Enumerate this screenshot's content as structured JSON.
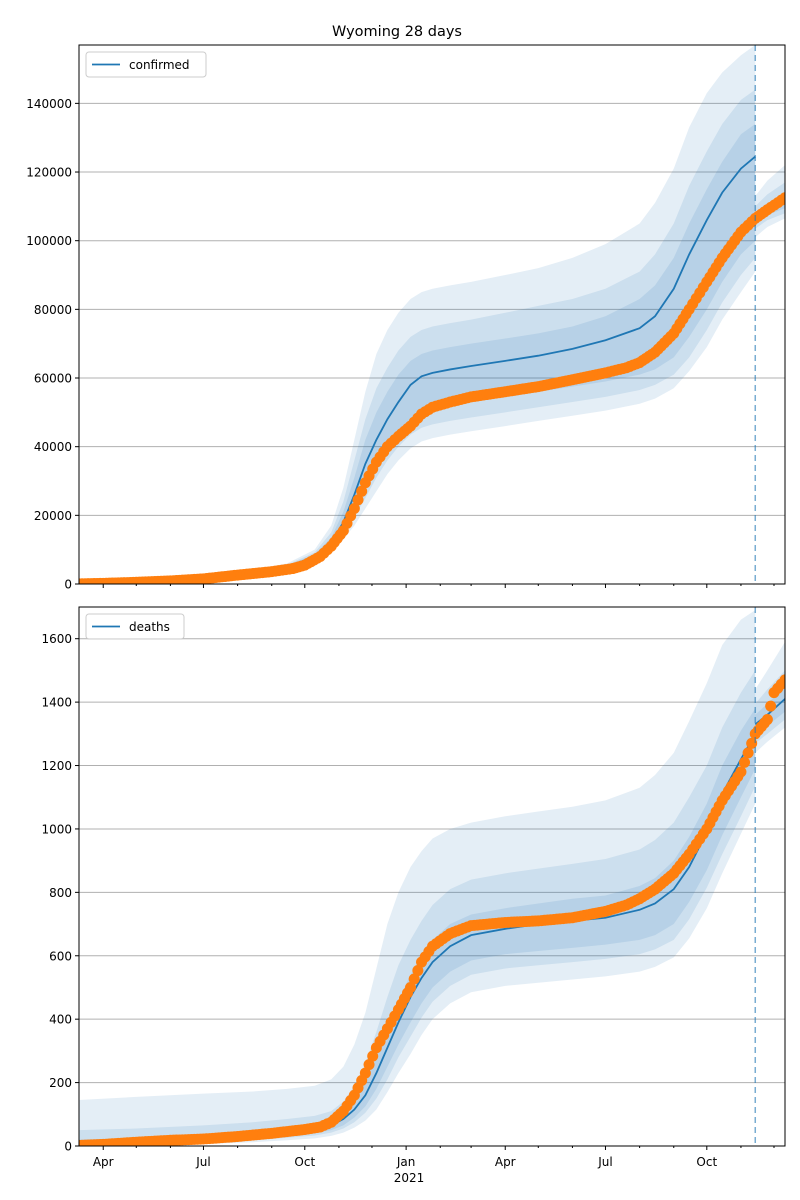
{
  "chart_data": [
    {
      "type": "line",
      "title": "Wyoming 28 days",
      "legend": {
        "label": "confirmed",
        "placement": "upper-left"
      },
      "grid_y": true,
      "x_range": [
        "2020-03-10",
        "2021-12-11"
      ],
      "x_ticks": [
        {
          "date": "2020-04-01",
          "label": "Apr"
        },
        {
          "date": "2020-07-01",
          "label": "Jul"
        },
        {
          "date": "2020-10-01",
          "label": "Oct"
        },
        {
          "date": "2021-01-01",
          "label": "Jan"
        },
        {
          "date": "2021-04-01",
          "label": "Apr"
        },
        {
          "date": "2021-07-01",
          "label": "Jul"
        },
        {
          "date": "2021-10-01",
          "label": "Oct"
        }
      ],
      "ylim": [
        0,
        157000
      ],
      "y_ticks": [
        0,
        20000,
        40000,
        60000,
        80000,
        100000,
        120000,
        140000
      ],
      "y_tick_labels": [
        "0",
        "20000",
        "40000",
        "60000",
        "80000",
        "100000",
        "120000",
        "140000"
      ],
      "forecast_date": "2021-11-14",
      "colors": {
        "line": "#1f77b4",
        "band": "#1f77b4",
        "points": "#ff7f0e",
        "grid": "#b0b0b0"
      },
      "model": {
        "dates": [
          "2020-03-10",
          "2020-05-01",
          "2020-07-01",
          "2020-08-15",
          "2020-09-15",
          "2020-10-10",
          "2020-10-25",
          "2020-11-05",
          "2020-11-15",
          "2020-11-25",
          "2020-12-05",
          "2020-12-15",
          "2020-12-25",
          "2021-01-05",
          "2021-01-15",
          "2021-01-25",
          "2021-02-10",
          "2021-03-01",
          "2021-04-01",
          "2021-05-01",
          "2021-06-01",
          "2021-07-01",
          "2021-08-01",
          "2021-08-15",
          "2021-09-01",
          "2021-09-15",
          "2021-10-01",
          "2021-10-15",
          "2021-11-01",
          "2021-11-14"
        ],
        "center": [
          0,
          200,
          1500,
          3500,
          5000,
          8000,
          12000,
          18000,
          26000,
          35000,
          42000,
          48000,
          53000,
          58000,
          60500,
          61500,
          62500,
          63500,
          65000,
          66500,
          68500,
          71000,
          74500,
          78000,
          86000,
          96000,
          106000,
          114000,
          121000,
          124500
        ],
        "band_inner": [
          {
            "lower": [
              0,
              180,
              1400,
              3300,
              4800,
              7600,
              11000,
              16000,
              22000,
              29000,
              35000,
              40000,
              44500,
              48000,
              50000,
              51000,
              52000,
              53000,
              54500,
              56000,
              57500,
              59000,
              61000,
              62500,
              66000,
              72000,
              80000,
              88000,
              96000,
              100000
            ],
            "upper": [
              0,
              220,
              1600,
              3700,
              5300,
              8700,
              13500,
              21000,
              31000,
              42000,
              50000,
              56000,
              61000,
              65000,
              67000,
              68000,
              69000,
              70000,
              71500,
              73000,
              75000,
              78000,
              83000,
              87000,
              95000,
              105000,
              115000,
              123000,
              131000,
              134000
            ]
          },
          {
            "lower": [
              0,
              160,
              1300,
              3100,
              4500,
              7200,
              10000,
              14500,
              19500,
              25000,
              31000,
              36000,
              40000,
              43500,
              45500,
              46500,
              47500,
              48500,
              50000,
              51500,
              53000,
              54500,
              56500,
              58000,
              61000,
              66000,
              74000,
              82000,
              90000,
              95000
            ],
            "upper": [
              0,
              250,
              1700,
              3900,
              5600,
              9200,
              15000,
              24000,
              36000,
              48000,
              57000,
              63000,
              68000,
              72000,
              74000,
              75000,
              76000,
              77000,
              79000,
              81000,
              83000,
              86000,
              91000,
              96000,
              105000,
              116000,
              126000,
              134000,
              141000,
              144000
            ]
          },
          {
            "lower": [
              0,
              140,
              1200,
              2900,
              4200,
              6800,
              9000,
              13000,
              17000,
              22000,
              27000,
              32000,
              36000,
              39500,
              41500,
              42500,
              43500,
              44500,
              46000,
              47500,
              49000,
              50500,
              52500,
              54000,
              57000,
              62000,
              69000,
              77000,
              85000,
              91000
            ],
            "upper": [
              0,
              280,
              1800,
              4100,
              6000,
              10000,
              17000,
              28000,
              42000,
              56000,
              67000,
              74000,
              79000,
              83000,
              85000,
              86000,
              87000,
              88000,
              90000,
              92000,
              95000,
              99000,
              105000,
              111000,
              121000,
              133000,
              143000,
              149000,
              154000,
              157000
            ]
          }
        ],
        "post": {
          "dates": [
            "2021-11-14",
            "2021-11-25",
            "2021-12-11"
          ],
          "center": [
            106500,
            109000,
            111000
          ],
          "bands": [
            {
              "lower": [
                105000,
                107500,
                109500
              ],
              "upper": [
                108000,
                111000,
                113500
              ]
            },
            {
              "lower": [
                103500,
                106000,
                108000
              ],
              "upper": [
                110000,
                113500,
                117000
              ]
            },
            {
              "lower": [
                101000,
                104000,
                106500
              ],
              "upper": [
                113000,
                117500,
                122000
              ]
            }
          ]
        }
      },
      "observed": {
        "dates": [
          "2020-03-10",
          "2020-04-01",
          "2020-05-01",
          "2020-06-01",
          "2020-07-01",
          "2020-08-01",
          "2020-09-01",
          "2020-09-20",
          "2020-10-01",
          "2020-10-15",
          "2020-10-25",
          "2020-11-05",
          "2020-11-15",
          "2020-11-25",
          "2020-12-05",
          "2020-12-15",
          "2020-12-25",
          "2021-01-05",
          "2021-01-15",
          "2021-01-25",
          "2021-02-10",
          "2021-03-01",
          "2021-04-01",
          "2021-05-01",
          "2021-06-01",
          "2021-07-01",
          "2021-07-20",
          "2021-08-01",
          "2021-08-15",
          "2021-09-01",
          "2021-09-15",
          "2021-10-01",
          "2021-10-15",
          "2021-11-01",
          "2021-11-14",
          "2021-11-25",
          "2021-12-11"
        ],
        "values": [
          50,
          200,
          500,
          900,
          1500,
          2600,
          3600,
          4500,
          5500,
          8000,
          11000,
          15500,
          22000,
          29500,
          35500,
          40000,
          43000,
          46000,
          49500,
          51500,
          53000,
          54500,
          56000,
          57500,
          59500,
          61500,
          63000,
          64500,
          67500,
          73000,
          80000,
          88000,
          95000,
          102500,
          106500,
          109000,
          112500
        ]
      }
    },
    {
      "type": "line",
      "legend": {
        "label": "deaths",
        "placement": "upper-left"
      },
      "grid_y": true,
      "x_range": [
        "2020-03-10",
        "2021-12-11"
      ],
      "x_ticks": [
        {
          "date": "2020-04-01",
          "label": "Apr"
        },
        {
          "date": "2020-07-01",
          "label": "Jul"
        },
        {
          "date": "2020-10-01",
          "label": "Oct"
        },
        {
          "date": "2021-01-01",
          "label": "Jan"
        },
        {
          "date": "2021-04-01",
          "label": "Apr"
        },
        {
          "date": "2021-07-01",
          "label": "Jul"
        },
        {
          "date": "2021-10-01",
          "label": "Oct"
        }
      ],
      "x_year_label": "2021",
      "ylim": [
        0,
        1700
      ],
      "y_ticks": [
        0,
        200,
        400,
        600,
        800,
        1000,
        1200,
        1400,
        1600
      ],
      "y_tick_labels": [
        "0",
        "200",
        "400",
        "600",
        "800",
        "1000",
        "1200",
        "1400",
        "1600"
      ],
      "forecast_date": "2021-11-14",
      "colors": {
        "line": "#1f77b4",
        "band": "#1f77b4",
        "points": "#ff7f0e",
        "grid": "#b0b0b0"
      },
      "model": {
        "dates": [
          "2020-03-10",
          "2020-05-01",
          "2020-07-01",
          "2020-08-15",
          "2020-09-15",
          "2020-10-10",
          "2020-10-25",
          "2020-11-05",
          "2020-11-15",
          "2020-11-25",
          "2020-12-05",
          "2020-12-15",
          "2020-12-25",
          "2021-01-05",
          "2021-01-15",
          "2021-01-25",
          "2021-02-10",
          "2021-03-01",
          "2021-04-01",
          "2021-05-01",
          "2021-06-01",
          "2021-07-01",
          "2021-08-01",
          "2021-08-15",
          "2021-09-01",
          "2021-09-15",
          "2021-10-01",
          "2021-10-15",
          "2021-11-01",
          "2021-11-14"
        ],
        "center": [
          0,
          10,
          22,
          32,
          42,
          52,
          65,
          85,
          115,
          160,
          230,
          310,
          390,
          470,
          530,
          580,
          630,
          665,
          685,
          700,
          710,
          720,
          745,
          765,
          810,
          880,
          990,
          1110,
          1220,
          1300
        ],
        "band_inner": [
          {
            "lower": [
              0,
              5,
              15,
              24,
              32,
              40,
              50,
              65,
              90,
              125,
              180,
              250,
              320,
              390,
              450,
              500,
              550,
              585,
              605,
              615,
              625,
              635,
              650,
              665,
              700,
              770,
              870,
              980,
              1100,
              1190
            ],
            "upper": [
              20,
              25,
              35,
              45,
              55,
              65,
              80,
              105,
              145,
              200,
              280,
              370,
              460,
              540,
              600,
              650,
              700,
              730,
              750,
              765,
              780,
              790,
              820,
              845,
              900,
              975,
              1080,
              1200,
              1310,
              1380
            ]
          },
          {
            "lower": [
              0,
              3,
              10,
              18,
              26,
              33,
              42,
              55,
              75,
              105,
              150,
              210,
              280,
              345,
              405,
              455,
              505,
              540,
              560,
              570,
              580,
              590,
              605,
              620,
              650,
              715,
              815,
              920,
              1040,
              1135
            ],
            "upper": [
              50,
              55,
              65,
              75,
              85,
              95,
              110,
              140,
              190,
              260,
              360,
              470,
              570,
              650,
              710,
              760,
              810,
              840,
              860,
              875,
              890,
              905,
              935,
              965,
              1020,
              1100,
              1200,
              1320,
              1430,
              1500
            ]
          },
          {
            "lower": [
              0,
              2,
              6,
              12,
              18,
              24,
              32,
              42,
              58,
              80,
              115,
              170,
              230,
              290,
              350,
              400,
              450,
              485,
              505,
              515,
              525,
              535,
              550,
              565,
              595,
              655,
              750,
              860,
              985,
              1080
            ],
            "upper": [
              145,
              155,
              165,
              172,
              180,
              190,
              210,
              250,
              320,
              420,
              560,
              700,
              800,
              880,
              930,
              970,
              1000,
              1020,
              1040,
              1055,
              1070,
              1090,
              1130,
              1170,
              1240,
              1340,
              1460,
              1580,
              1660,
              1690
            ]
          }
        ],
        "post": {
          "dates": [
            "2021-11-14",
            "2021-11-25",
            "2021-12-11"
          ],
          "center": [
            1330,
            1360,
            1410
          ],
          "bands": [
            {
              "lower": [
                1300,
                1325,
                1370
              ],
              "upper": [
                1360,
                1395,
                1450
              ]
            },
            {
              "lower": [
                1270,
                1300,
                1345
              ],
              "upper": [
                1395,
                1440,
                1500
              ]
            },
            {
              "lower": [
                1240,
                1275,
                1320
              ],
              "upper": [
                1440,
                1500,
                1590
              ]
            }
          ]
        }
      },
      "observed": {
        "dates": [
          "2020-03-10",
          "2020-04-01",
          "2020-05-01",
          "2020-06-01",
          "2020-07-01",
          "2020-08-01",
          "2020-09-01",
          "2020-10-01",
          "2020-10-15",
          "2020-10-25",
          "2020-11-05",
          "2020-11-15",
          "2020-11-25",
          "2020-12-05",
          "2020-12-15",
          "2020-12-25",
          "2021-01-05",
          "2021-01-15",
          "2021-01-25",
          "2021-02-10",
          "2021-03-01",
          "2021-04-01",
          "2021-05-01",
          "2021-06-01",
          "2021-07-01",
          "2021-07-20",
          "2021-08-01",
          "2021-08-15",
          "2021-09-01",
          "2021-09-15",
          "2021-10-01",
          "2021-10-15",
          "2021-11-01",
          "2021-11-14",
          "2021-11-25",
          "2021-12-01",
          "2021-12-11"
        ],
        "values": [
          2,
          5,
          12,
          18,
          22,
          30,
          40,
          52,
          60,
          75,
          110,
          160,
          230,
          310,
          370,
          430,
          500,
          580,
          630,
          670,
          695,
          705,
          710,
          720,
          740,
          760,
          780,
          810,
          860,
          920,
          1000,
          1090,
          1180,
          1300,
          1345,
          1430,
          1470
        ]
      }
    }
  ]
}
